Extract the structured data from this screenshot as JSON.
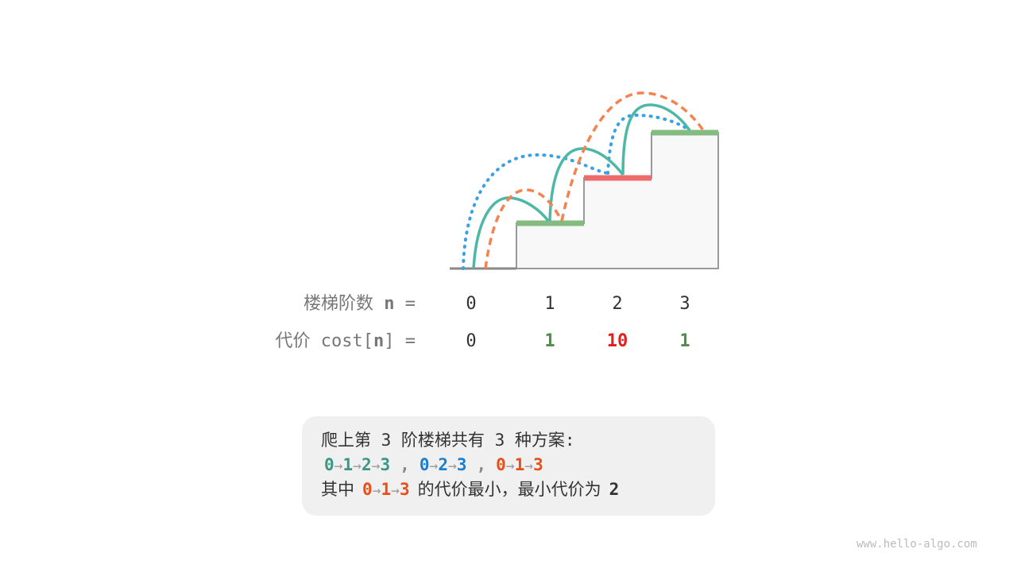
{
  "colors": {
    "teal": "#4db8a7",
    "blue": "#3aa1e6",
    "orange": "#f5834f",
    "step_green": "#83bb80",
    "step_red": "#ef6a6a",
    "cost_green": "#4e8f4a",
    "cost_red": "#e02020",
    "path_teal": "#3b9686",
    "path_blue": "#1a7fd0",
    "path_orange": "#e8501a"
  },
  "rows": {
    "steps_label": "楼梯阶数",
    "steps_var": "n",
    "steps_eq": "=",
    "steps": [
      "0",
      "1",
      "2",
      "3"
    ],
    "cost_label": "代价 cost[",
    "cost_var": "n",
    "cost_close": "] =",
    "costs": [
      "0",
      "1",
      "10",
      "1"
    ]
  },
  "summary": {
    "line1": "爬上第 3 阶楼梯共有 3 种方案:",
    "paths": [
      [
        "0",
        "1",
        "2",
        "3"
      ],
      [
        "0",
        "2",
        "3"
      ],
      [
        "0",
        "1",
        "3"
      ]
    ],
    "sep": ",",
    "arrow": "→",
    "line3_prefix": "其中",
    "line3_path": [
      "0",
      "1",
      "3"
    ],
    "line3_suffix": "的代价最小，最小代价为",
    "min_cost": "2"
  },
  "watermark": "www.hello-algo.com"
}
